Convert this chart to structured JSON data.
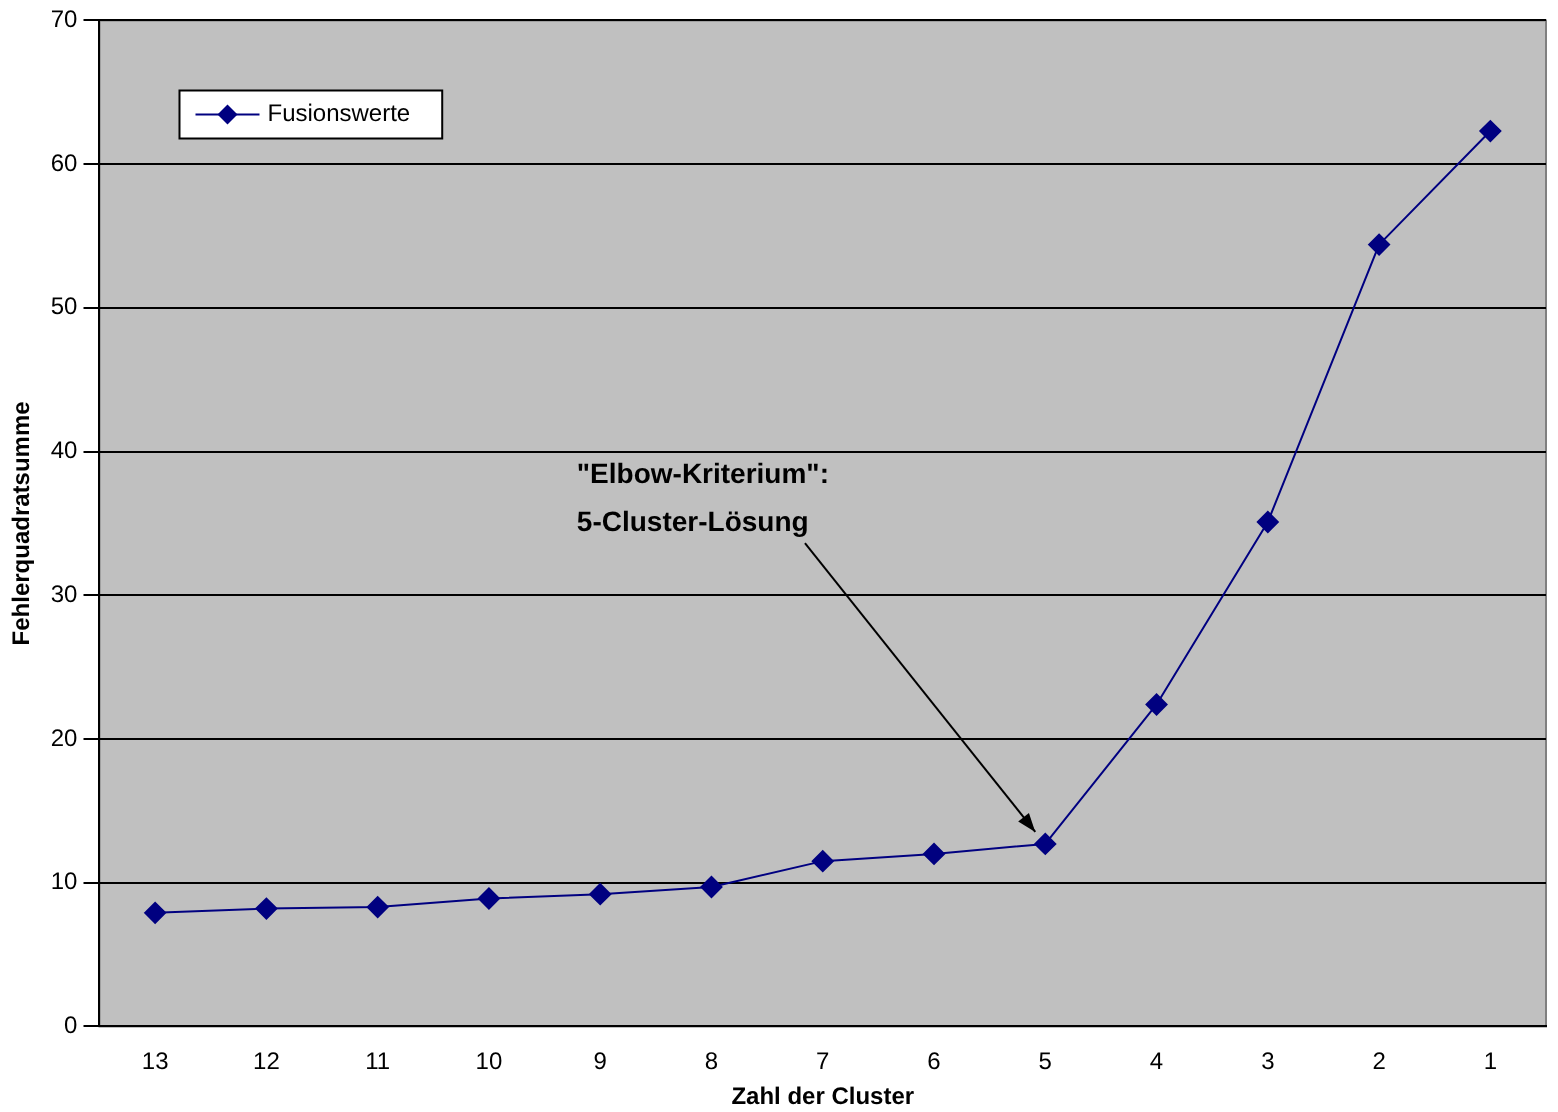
{
  "chart_data": {
    "type": "line",
    "xlabel": "Zahl der Cluster",
    "ylabel": "Fehlerquadratsumme",
    "categories": [
      "13",
      "12",
      "11",
      "10",
      "9",
      "8",
      "7",
      "6",
      "5",
      "4",
      "3",
      "2",
      "1"
    ],
    "series": [
      {
        "name": "Fusionswerte",
        "color": "#000080",
        "values": [
          7.9,
          8.2,
          8.3,
          8.9,
          9.2,
          9.7,
          11.5,
          12.0,
          12.7,
          22.4,
          35.1,
          54.4,
          62.3
        ]
      }
    ],
    "ylim": [
      0,
      70
    ],
    "yticks": [
      0,
      10,
      20,
      30,
      40,
      50,
      60,
      70
    ],
    "grid": "y",
    "legend": "top left",
    "marker": "diamond",
    "line_style": "solid",
    "annotations": [
      {
        "text": "\"Elbow-Kriterium\":\n5-Cluster-Lösung",
        "x": "5",
        "y": 12.7
      }
    ]
  }
}
